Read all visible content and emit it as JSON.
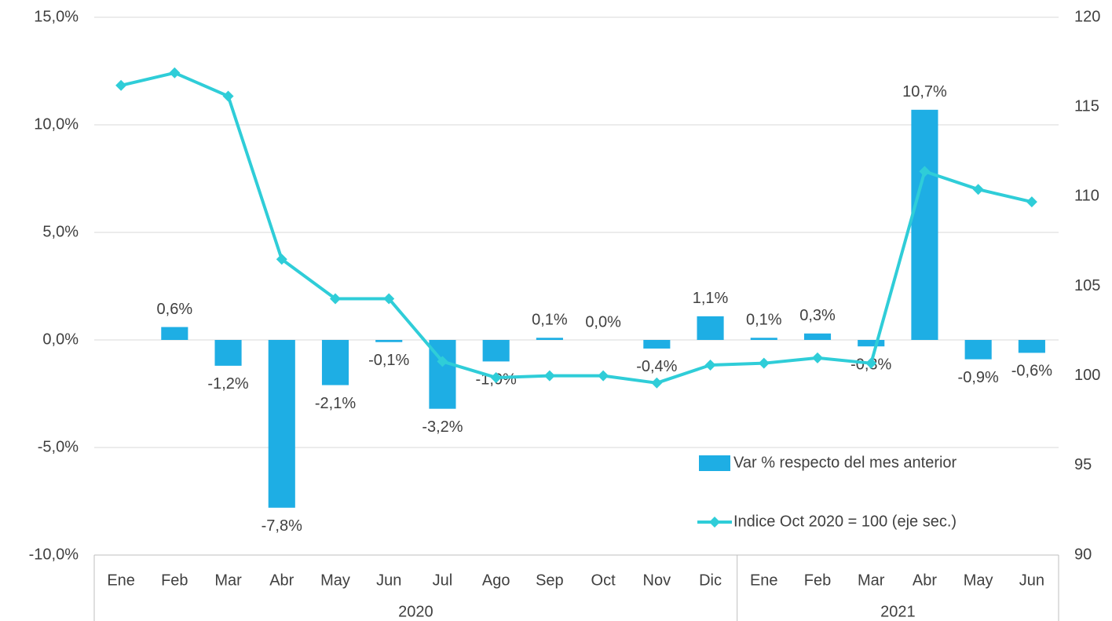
{
  "chart_data": {
    "type": "bar_line",
    "categories": [
      "Ene",
      "Feb",
      "Mar",
      "Abr",
      "May",
      "Jun",
      "Jul",
      "Ago",
      "Sep",
      "Oct",
      "Nov",
      "Dic",
      "Ene",
      "Feb",
      "Mar",
      "Abr",
      "May",
      "Jun"
    ],
    "years": [
      "2020",
      "2021"
    ],
    "series": [
      {
        "name": "Var % respecto del mes anterior",
        "type": "bar",
        "color": "#1eaee4",
        "values": [
          null,
          0.6,
          -1.2,
          -7.8,
          -2.1,
          -0.1,
          -3.2,
          -1.0,
          0.1,
          0.0,
          -0.4,
          1.1,
          0.1,
          0.3,
          -0.3,
          10.7,
          -0.9,
          -0.6
        ],
        "value_labels": [
          null,
          "0,6%",
          "-1,2%",
          "-7,8%",
          "-2,1%",
          "-0,1%",
          "-3,2%",
          "-1,0%",
          "0,1%",
          "0,0%",
          "-0,4%",
          "1,1%",
          "0,1%",
          "0,3%",
          "-0,3%",
          "10,7%",
          "-0,9%",
          "-0,6%"
        ]
      },
      {
        "name": "Indice Oct 2020 = 100 (eje sec.)",
        "type": "line",
        "axis": "y2",
        "color": "#2fcdd8",
        "values": [
          116.2,
          116.9,
          115.6,
          106.5,
          104.3,
          104.3,
          100.8,
          99.9,
          100.0,
          100.0,
          99.6,
          100.6,
          100.7,
          101.0,
          100.7,
          111.4,
          110.4,
          109.7
        ]
      }
    ],
    "ylim": [
      -10,
      15
    ],
    "yticks": [
      {
        "value": -10,
        "label": "-10,0%"
      },
      {
        "value": -5,
        "label": "-5,0%"
      },
      {
        "value": 0,
        "label": "0,0%"
      },
      {
        "value": 5,
        "label": "5,0%"
      },
      {
        "value": 10,
        "label": "10,0%"
      },
      {
        "value": 15,
        "label": "15,0%"
      }
    ],
    "y2lim": [
      90,
      120
    ],
    "y2ticks": [
      90,
      95,
      100,
      105,
      110,
      115,
      120
    ],
    "grid": true
  }
}
